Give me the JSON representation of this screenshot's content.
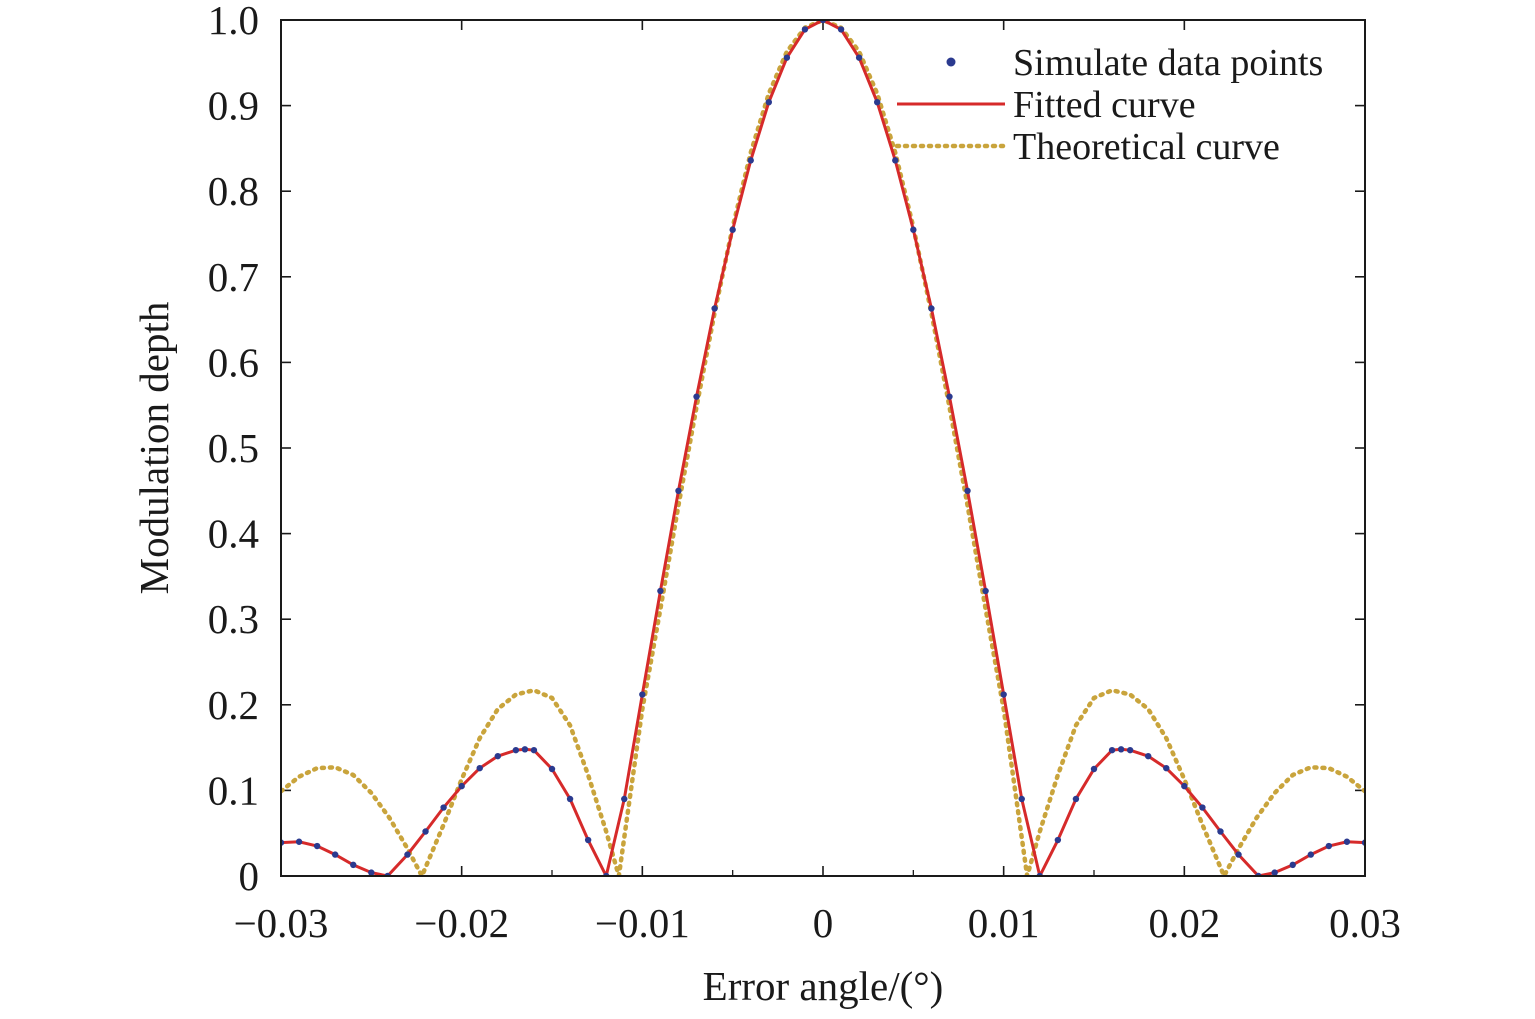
{
  "chart_data": {
    "type": "line",
    "title": "",
    "xlabel": "Error angle/(°)",
    "ylabel": "Modulation depth",
    "xlim": [
      -0.03,
      0.03
    ],
    "ylim": [
      0,
      1.0
    ],
    "x_ticks": [
      -0.03,
      -0.02,
      -0.01,
      0,
      0.01,
      0.02,
      0.03
    ],
    "x_tick_labels": [
      "−0.03",
      "−0.02",
      "−0.01",
      "0",
      "0.01",
      "0.02",
      "0.03"
    ],
    "y_ticks": [
      0,
      0.1,
      0.2,
      0.3,
      0.4,
      0.5,
      0.6,
      0.7,
      0.8,
      0.9,
      1.0
    ],
    "y_tick_labels": [
      "0",
      "0.1",
      "0.2",
      "0.3",
      "0.4",
      "0.5",
      "0.6",
      "0.7",
      "0.8",
      "0.9",
      "1.0"
    ],
    "grid": false,
    "legend_position": "top-right",
    "series": [
      {
        "name": "Simulate data points",
        "style": "markers",
        "color": "#2b3a8f",
        "x": [
          -0.03,
          -0.029,
          -0.028,
          -0.027,
          -0.026,
          -0.025,
          -0.0241,
          -0.023,
          -0.022,
          -0.021,
          -0.02,
          -0.019,
          -0.018,
          -0.017,
          -0.0165,
          -0.016,
          -0.015,
          -0.014,
          -0.013,
          -0.012,
          -0.011,
          -0.01,
          -0.009,
          -0.008,
          -0.007,
          -0.006,
          -0.005,
          -0.004,
          -0.003,
          -0.002,
          -0.001,
          0,
          0.001,
          0.002,
          0.003,
          0.004,
          0.005,
          0.006,
          0.007,
          0.008,
          0.009,
          0.01,
          0.011,
          0.012,
          0.013,
          0.014,
          0.015,
          0.016,
          0.0165,
          0.017,
          0.018,
          0.019,
          0.02,
          0.021,
          0.022,
          0.023,
          0.0241,
          0.025,
          0.026,
          0.027,
          0.028,
          0.029,
          0.03
        ],
        "y": [
          0.039,
          0.04,
          0.035,
          0.025,
          0.013,
          0.004,
          0.0,
          0.025,
          0.052,
          0.08,
          0.105,
          0.126,
          0.14,
          0.147,
          0.148,
          0.147,
          0.125,
          0.09,
          0.042,
          0.0,
          0.09,
          0.212,
          0.333,
          0.45,
          0.56,
          0.663,
          0.755,
          0.836,
          0.904,
          0.956,
          0.989,
          1.0,
          0.989,
          0.956,
          0.904,
          0.836,
          0.755,
          0.663,
          0.56,
          0.45,
          0.333,
          0.212,
          0.09,
          0.0,
          0.042,
          0.09,
          0.125,
          0.147,
          0.148,
          0.147,
          0.14,
          0.126,
          0.105,
          0.08,
          0.052,
          0.025,
          0.0,
          0.004,
          0.013,
          0.025,
          0.035,
          0.04,
          0.039
        ]
      },
      {
        "name": "Fitted curve",
        "style": "solid",
        "color": "#d62a2a",
        "x": [
          -0.03,
          -0.029,
          -0.028,
          -0.027,
          -0.026,
          -0.025,
          -0.0241,
          -0.023,
          -0.022,
          -0.021,
          -0.02,
          -0.019,
          -0.018,
          -0.017,
          -0.0165,
          -0.016,
          -0.015,
          -0.014,
          -0.013,
          -0.012,
          -0.011,
          -0.01,
          -0.009,
          -0.008,
          -0.007,
          -0.006,
          -0.005,
          -0.004,
          -0.003,
          -0.002,
          -0.001,
          0,
          0.001,
          0.002,
          0.003,
          0.004,
          0.005,
          0.006,
          0.007,
          0.008,
          0.009,
          0.01,
          0.011,
          0.012,
          0.013,
          0.014,
          0.015,
          0.016,
          0.0165,
          0.017,
          0.018,
          0.019,
          0.02,
          0.021,
          0.022,
          0.023,
          0.0241,
          0.025,
          0.026,
          0.027,
          0.028,
          0.029,
          0.03
        ],
        "y": [
          0.039,
          0.04,
          0.035,
          0.025,
          0.013,
          0.004,
          0.0,
          0.025,
          0.052,
          0.08,
          0.105,
          0.126,
          0.14,
          0.147,
          0.148,
          0.147,
          0.125,
          0.09,
          0.042,
          0.0,
          0.09,
          0.212,
          0.333,
          0.45,
          0.56,
          0.663,
          0.755,
          0.836,
          0.904,
          0.956,
          0.989,
          1.0,
          0.989,
          0.956,
          0.904,
          0.836,
          0.755,
          0.663,
          0.56,
          0.45,
          0.333,
          0.212,
          0.09,
          0.0,
          0.042,
          0.09,
          0.125,
          0.147,
          0.148,
          0.147,
          0.14,
          0.126,
          0.105,
          0.08,
          0.052,
          0.025,
          0.0,
          0.004,
          0.013,
          0.025,
          0.035,
          0.04,
          0.039
        ]
      },
      {
        "name": "Theoretical curve",
        "style": "dotted",
        "color": "#c9a43c",
        "x": [
          -0.03,
          -0.029,
          -0.028,
          -0.027,
          -0.026,
          -0.025,
          -0.024,
          -0.023,
          -0.0222,
          -0.021,
          -0.02,
          -0.019,
          -0.018,
          -0.017,
          -0.016,
          -0.015,
          -0.014,
          -0.013,
          -0.012,
          -0.0113,
          -0.01,
          -0.009,
          -0.008,
          -0.007,
          -0.006,
          -0.005,
          -0.004,
          -0.003,
          -0.002,
          -0.001,
          0,
          0.001,
          0.002,
          0.003,
          0.004,
          0.005,
          0.006,
          0.007,
          0.008,
          0.009,
          0.01,
          0.0113,
          0.012,
          0.013,
          0.014,
          0.015,
          0.016,
          0.017,
          0.018,
          0.019,
          0.02,
          0.021,
          0.0222,
          0.023,
          0.024,
          0.025,
          0.026,
          0.027,
          0.028,
          0.029,
          0.03
        ],
        "y": [
          0.099,
          0.116,
          0.126,
          0.127,
          0.118,
          0.097,
          0.068,
          0.032,
          0.0,
          0.06,
          0.113,
          0.161,
          0.195,
          0.212,
          0.217,
          0.208,
          0.176,
          0.118,
          0.052,
          0.0,
          0.195,
          0.312,
          0.433,
          0.548,
          0.658,
          0.758,
          0.845,
          0.914,
          0.963,
          0.991,
          1.0,
          0.991,
          0.963,
          0.914,
          0.845,
          0.758,
          0.658,
          0.548,
          0.433,
          0.312,
          0.195,
          0.0,
          0.052,
          0.118,
          0.176,
          0.208,
          0.217,
          0.212,
          0.195,
          0.161,
          0.113,
          0.06,
          0.0,
          0.032,
          0.068,
          0.097,
          0.118,
          0.127,
          0.126,
          0.116,
          0.099
        ]
      }
    ]
  }
}
